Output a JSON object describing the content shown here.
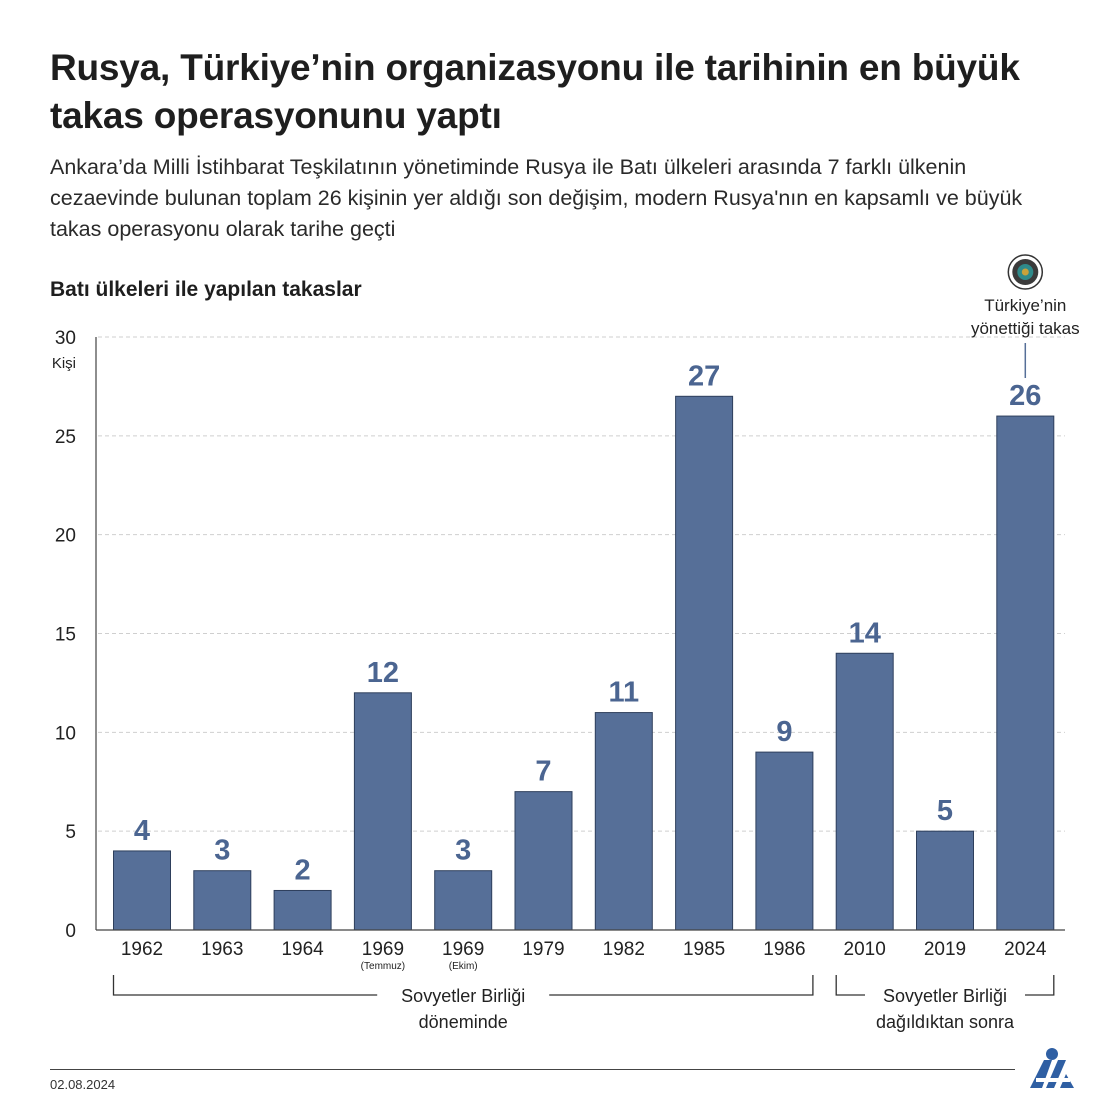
{
  "title": "Rusya, Türkiye’nin organizasyonu ile tarihinin en büyük takas operasyonunu yaptı",
  "subtitle": "Ankara’da Milli İstihbarat Teşkilatının yönetiminde Rusya ile Batı ülkeleri arasında 7 farklı ülkenin cezaevinde bulunan toplam 26 kişinin yer aldığı son değişim, modern Rusya'nın en kapsamlı ve büyük takas operasyonu olarak tarihe geçti",
  "date": "02.08.2024",
  "logo_icon": "aa-logo-icon",
  "emblem_icon": "mit-emblem-icon",
  "chart_data": {
    "type": "bar",
    "title": "Batı ülkeleri ile yapılan takaslar",
    "ylabel": "Kişi",
    "xlabel": "",
    "ylim": [
      0,
      30
    ],
    "yticks": [
      0,
      5,
      10,
      15,
      20,
      25,
      30
    ],
    "grid": true,
    "bar_color": "#566f98",
    "label_color": "#4b6591",
    "categories": [
      "1962",
      "1963",
      "1964",
      "1969",
      "1969",
      "1979",
      "1982",
      "1985",
      "1986",
      "2010",
      "2019",
      "2024"
    ],
    "category_notes": [
      "",
      "",
      "",
      "(Temmuz)",
      "(Ekim)",
      "",
      "",
      "",
      "",
      "",
      "",
      ""
    ],
    "values": [
      4,
      3,
      2,
      12,
      3,
      7,
      11,
      27,
      9,
      14,
      5,
      26
    ],
    "annotation": {
      "category_index": 11,
      "text_line1": "Türkiye’nin",
      "text_line2": "yönettiği takas"
    },
    "groups": [
      {
        "line1": "Sovyetler Birliği",
        "line2": "döneminde",
        "from_index": 0,
        "to_index": 8
      },
      {
        "line1": "Sovyetler Birliği",
        "line2": "dağıldıktan sonra",
        "from_index": 9,
        "to_index": 11
      }
    ]
  }
}
